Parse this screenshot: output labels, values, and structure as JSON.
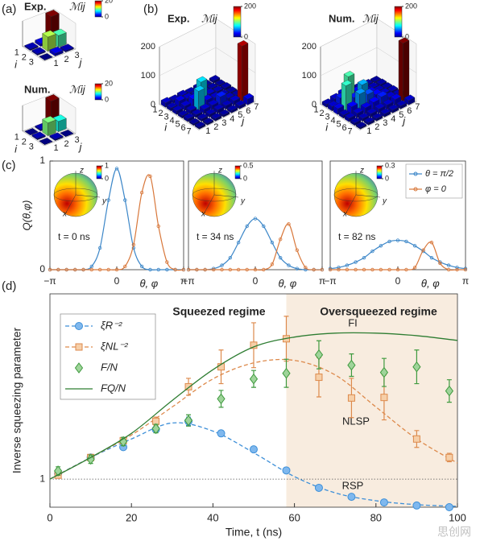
{
  "watermark": "思创网",
  "chart_data": [
    {
      "type": "bar3d",
      "panel_label": "(a)",
      "title": "Exp.",
      "colorbar_label": "ℳij",
      "xlabel": "i",
      "ylabel": "j",
      "iticks": [
        1,
        2,
        3
      ],
      "jticks": [
        1,
        2,
        3
      ],
      "values": [
        [
          1,
          2,
          20
        ],
        [
          1,
          11,
          9
        ],
        [
          0,
          2,
          1
        ]
      ],
      "zlim": [
        0,
        20
      ],
      "colorbar_ticks": [
        0,
        20
      ]
    },
    {
      "type": "bar3d",
      "title": "Num.",
      "colorbar_label": "ℳij",
      "xlabel": "i",
      "ylabel": "j",
      "iticks": [
        1,
        2,
        3
      ],
      "jticks": [
        1,
        2,
        3
      ],
      "values": [
        [
          0,
          1,
          20
        ],
        [
          1,
          10,
          8
        ],
        [
          0,
          1,
          0
        ]
      ],
      "zlim": [
        0,
        20
      ],
      "colorbar_ticks": [
        0,
        20
      ]
    },
    {
      "type": "bar3d",
      "panel_label": "(b)",
      "title": "Exp.",
      "colorbar_label": "ℳij",
      "xlabel": "i",
      "ylabel": "j",
      "iticks": [
        1,
        2,
        3,
        4,
        5,
        6,
        7
      ],
      "jticks": [
        1,
        2,
        3,
        4,
        5,
        6,
        7
      ],
      "values": [
        [
          15,
          10,
          12,
          8,
          10,
          5,
          8
        ],
        [
          10,
          20,
          15,
          12,
          10,
          8,
          5
        ],
        [
          12,
          15,
          25,
          70,
          15,
          10,
          8
        ],
        [
          8,
          12,
          65,
          20,
          15,
          10,
          6
        ],
        [
          10,
          10,
          15,
          15,
          30,
          12,
          8
        ],
        [
          5,
          8,
          10,
          12,
          12,
          15,
          190
        ],
        [
          6,
          5,
          8,
          6,
          8,
          10,
          20
        ]
      ],
      "zlim": [
        0,
        200
      ],
      "zticks": [
        0,
        100,
        200
      ],
      "colorbar_ticks": [
        0,
        200
      ]
    },
    {
      "type": "bar3d",
      "title": "Num.",
      "colorbar_label": "ℳij",
      "xlabel": "i",
      "ylabel": "j",
      "iticks": [
        1,
        2,
        3,
        4,
        5,
        6,
        7
      ],
      "jticks": [
        1,
        2,
        3,
        4,
        5,
        6,
        7
      ],
      "values": [
        [
          10,
          15,
          20,
          10,
          12,
          8,
          5
        ],
        [
          15,
          30,
          90,
          25,
          15,
          10,
          8
        ],
        [
          20,
          85,
          30,
          60,
          20,
          12,
          8
        ],
        [
          10,
          25,
          55,
          40,
          25,
          15,
          10
        ],
        [
          12,
          15,
          20,
          25,
          30,
          15,
          10
        ],
        [
          8,
          10,
          12,
          15,
          15,
          20,
          200
        ],
        [
          5,
          8,
          8,
          10,
          10,
          10,
          15
        ]
      ],
      "zlim": [
        0,
        200
      ],
      "zticks": [
        0,
        100,
        200
      ],
      "colorbar_ticks": [
        0,
        200
      ]
    },
    {
      "type": "line",
      "panel_label": "(c)",
      "ylabel": "Q(θ,φ)",
      "xlabel": "θ, φ",
      "annotation": "t = 0 ns",
      "xlim": [
        -3.1416,
        3.1416
      ],
      "ylim": [
        0,
        1
      ],
      "xticks": [
        {
          "value": -3.1416,
          "label": "−π"
        },
        0,
        {
          "value": 3.1416,
          "label": "π"
        }
      ],
      "yticks": [
        0,
        1
      ],
      "inset_colorbar_ticks": [
        0,
        1
      ],
      "sphere_axis_labels": [
        "z",
        "x",
        "y"
      ],
      "x": [
        -3.14,
        -2.75,
        -2.36,
        -1.96,
        -1.57,
        -1.18,
        -0.79,
        -0.39,
        0,
        0.39,
        0.79,
        1.18,
        1.57,
        1.96,
        2.36,
        2.75,
        3.14
      ],
      "series": [
        {
          "color": "#3b86c8",
          "values": [
            0,
            0,
            0,
            0,
            0,
            0.03,
            0.2,
            0.64,
            0.93,
            0.64,
            0.2,
            0.03,
            0,
            0,
            0,
            0,
            0
          ]
        },
        {
          "color": "#d8773a",
          "values": [
            0,
            0,
            0,
            0,
            0,
            0,
            0,
            0,
            0,
            0.03,
            0.23,
            0.71,
            0.86,
            0.4,
            0.07,
            0,
            0
          ]
        }
      ]
    },
    {
      "type": "line",
      "xlabel": "θ, φ",
      "annotation": "t = 34 ns",
      "xlim": [
        -3.1416,
        3.1416
      ],
      "ylim": [
        0,
        1
      ],
      "xticks": [
        {
          "value": -3.1416,
          "label": "−π"
        },
        0,
        {
          "value": 3.1416,
          "label": "π"
        }
      ],
      "inset_colorbar_ticks": [
        0,
        0.5
      ],
      "sphere_axis_labels": [
        "z",
        "x",
        "y"
      ],
      "x": [
        -3.14,
        -2.75,
        -2.36,
        -1.96,
        -1.57,
        -1.18,
        -0.79,
        -0.39,
        0,
        0.39,
        0.79,
        1.18,
        1.57,
        1.96,
        2.36,
        2.75,
        3.14
      ],
      "series": [
        {
          "color": "#3b86c8",
          "values": [
            0,
            0,
            0,
            0.01,
            0.04,
            0.11,
            0.25,
            0.4,
            0.47,
            0.4,
            0.25,
            0.11,
            0.04,
            0.01,
            0,
            0,
            0
          ]
        },
        {
          "color": "#d8773a",
          "values": [
            0,
            0,
            0,
            0,
            0,
            0,
            0,
            0,
            0,
            0,
            0.05,
            0.28,
            0.42,
            0.18,
            0.02,
            0,
            0
          ]
        }
      ]
    },
    {
      "type": "line",
      "xlabel": "θ, φ",
      "annotation": "t = 82 ns",
      "legend": "upper right",
      "xlim": [
        -3.1416,
        3.1416
      ],
      "ylim": [
        0,
        1
      ],
      "xticks": [
        {
          "value": -3.1416,
          "label": "−π"
        },
        0,
        {
          "value": 3.1416,
          "label": "π"
        }
      ],
      "inset_colorbar_ticks": [
        0,
        0.3
      ],
      "sphere_axis_labels": [
        "z",
        "x",
        "y"
      ],
      "x": [
        -3.14,
        -2.75,
        -2.36,
        -1.96,
        -1.57,
        -1.18,
        -0.79,
        -0.39,
        0,
        0.39,
        0.79,
        1.18,
        1.57,
        1.96,
        2.36,
        2.75,
        3.14
      ],
      "series": [
        {
          "name": "θ = π/2",
          "color": "#3b86c8",
          "values": [
            0.01,
            0.02,
            0.04,
            0.07,
            0.11,
            0.17,
            0.22,
            0.26,
            0.27,
            0.26,
            0.22,
            0.17,
            0.11,
            0.07,
            0.04,
            0.02,
            0.01
          ]
        },
        {
          "name": "φ = 0",
          "color": "#d8773a",
          "values": [
            0,
            0,
            0,
            0,
            0,
            0,
            0,
            0,
            0,
            0,
            0.02,
            0.18,
            0.25,
            0.06,
            0,
            0,
            0
          ]
        }
      ]
    },
    {
      "type": "scatter",
      "panel_label": "(d)",
      "xlabel": "Time, t (ns)",
      "ylabel": "Inverse squeezing parameter",
      "xlim": [
        0,
        100
      ],
      "ylim": [
        0,
        7.6
      ],
      "xticks": [
        0,
        20,
        40,
        60,
        80,
        100
      ],
      "yticks": [
        1
      ],
      "shade_from": 58,
      "legend": "upper left",
      "annotations": [
        "Squeezed regime",
        "Oversqueezed regime",
        "FI",
        "NLSP",
        "RSP"
      ],
      "series": [
        {
          "name": "ξR⁻²",
          "color": "#3d8fd8",
          "marker": "circle",
          "x": [
            2,
            10,
            18,
            26,
            34,
            42,
            50,
            58,
            66,
            74,
            82,
            90,
            98
          ],
          "values": [
            1.2,
            1.77,
            2.14,
            2.77,
            3.06,
            2.63,
            2.06,
            1.31,
            0.69,
            0.37,
            0.17,
            0.06,
            0
          ],
          "errors": [
            0.15,
            0.1,
            0.1,
            0.1,
            0.15,
            0.1,
            0.08,
            0.08,
            0.06,
            0.05,
            0.05,
            0.05,
            0.05
          ],
          "fit": {
            "x": [
              0,
              10,
              20,
              30,
              40,
              50,
              60,
              70,
              80,
              90,
              100
            ],
            "values": [
              1,
              1.77,
              2.43,
              3,
              2.71,
              1.94,
              1.09,
              0.51,
              0.23,
              0.09,
              0.03
            ]
          }
        },
        {
          "name": "ξNL⁻²",
          "color": "#dd8a4c",
          "marker": "square",
          "x": [
            2,
            10,
            18,
            26,
            34,
            42,
            50,
            58,
            66,
            74,
            82,
            90,
            98
          ],
          "values": [
            1.14,
            1.77,
            2.37,
            3.06,
            4.29,
            5,
            5.77,
            6,
            4.63,
            3.89,
            3.91,
            2.43,
            1.77
          ],
          "errors": [
            0.1,
            0.1,
            0.1,
            0.15,
            0.3,
            0.6,
            0.8,
            0.8,
            0.7,
            0.7,
            0.8,
            0.3,
            0.15
          ],
          "fit": {
            "x": [
              0,
              10,
              20,
              30,
              40,
              50,
              60,
              70,
              80,
              90,
              100
            ],
            "values": [
              1,
              1.77,
              2.57,
              3.57,
              4.57,
              5.14,
              5.23,
              4.71,
              3.57,
              2.43,
              1.57
            ]
          }
        },
        {
          "name": "F/N",
          "color": "#3f9a3f",
          "marker": "diamond",
          "x": [
            2,
            10,
            18,
            26,
            34,
            42,
            50,
            58,
            66,
            74,
            82,
            90,
            98
          ],
          "values": [
            1.29,
            1.71,
            2.34,
            2.8,
            3.09,
            3.86,
            4.57,
            4.77,
            5.43,
            5.06,
            4.8,
            5,
            4.14
          ],
          "errors": [
            0.15,
            0.15,
            0.15,
            0.15,
            0.2,
            0.3,
            0.3,
            0.5,
            0.5,
            0.4,
            0.5,
            0.6,
            0.4
          ]
        },
        {
          "name": "FQ/N",
          "color": "#2e7d32",
          "x": [
            0,
            10,
            20,
            30,
            40,
            50,
            60,
            70,
            80,
            90,
            100
          ],
          "values": [
            1,
            1.77,
            2.63,
            3.8,
            4.9,
            5.71,
            6.06,
            6.2,
            6.2,
            6.11,
            5.94
          ]
        }
      ]
    }
  ]
}
